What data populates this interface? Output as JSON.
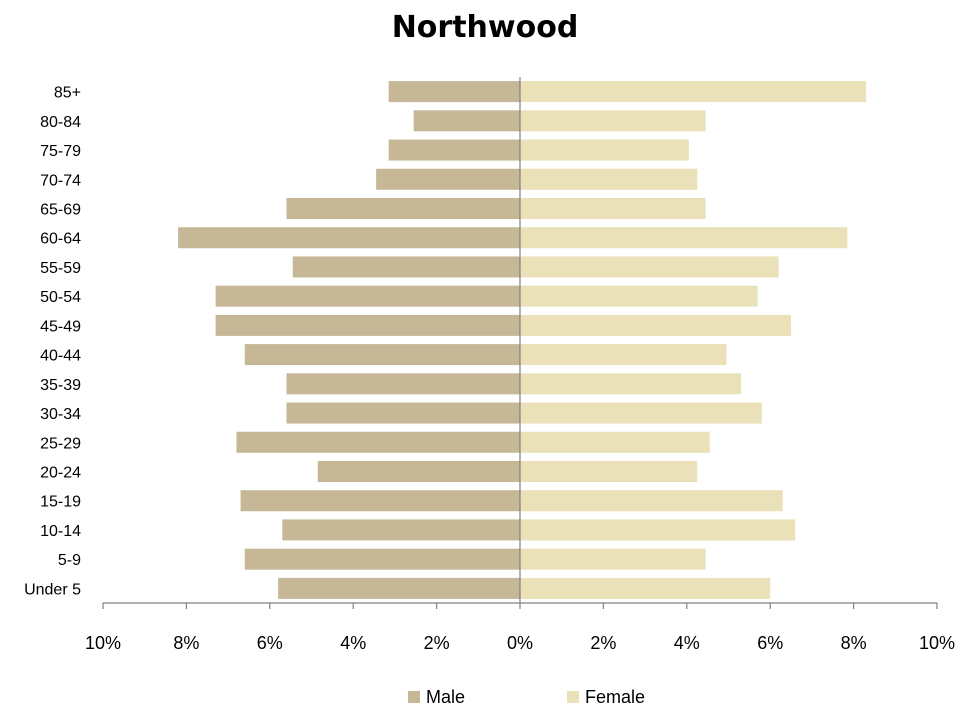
{
  "chart_data": {
    "type": "bar",
    "title": "Northwood",
    "categories": [
      "Under 5",
      "5-9",
      "10-14",
      "15-19",
      "20-24",
      "25-29",
      "30-34",
      "35-39",
      "40-44",
      "45-49",
      "50-54",
      "55-59",
      "60-64",
      "65-69",
      "70-74",
      "75-79",
      "80-84",
      "85+"
    ],
    "series": [
      {
        "name": "Male",
        "color": "#c6b897",
        "values": [
          5.8,
          6.6,
          5.7,
          6.7,
          4.85,
          6.8,
          5.6,
          5.6,
          6.6,
          7.3,
          7.3,
          5.45,
          8.2,
          5.6,
          3.45,
          3.15,
          2.55,
          3.15
        ]
      },
      {
        "name": "Female",
        "color": "#eae1b8",
        "values": [
          6.0,
          4.45,
          6.6,
          6.3,
          4.25,
          4.55,
          5.8,
          5.3,
          4.95,
          6.5,
          5.7,
          6.2,
          7.85,
          4.45,
          4.25,
          4.05,
          4.45,
          8.3
        ]
      }
    ],
    "xlim": [
      -10,
      10
    ],
    "x_ticks": [
      {
        "value": -10,
        "label": "10%"
      },
      {
        "value": -8,
        "label": "8%"
      },
      {
        "value": -6,
        "label": "6%"
      },
      {
        "value": -4,
        "label": "4%"
      },
      {
        "value": -2,
        "label": "2%"
      },
      {
        "value": 0,
        "label": "0%"
      },
      {
        "value": 2,
        "label": "2%"
      },
      {
        "value": 4,
        "label": "4%"
      },
      {
        "value": 6,
        "label": "6%"
      },
      {
        "value": 8,
        "label": "8%"
      },
      {
        "value": 10,
        "label": "10%"
      }
    ],
    "xlabel": "",
    "ylabel": "",
    "grid": false,
    "legend_position": "bottom"
  }
}
